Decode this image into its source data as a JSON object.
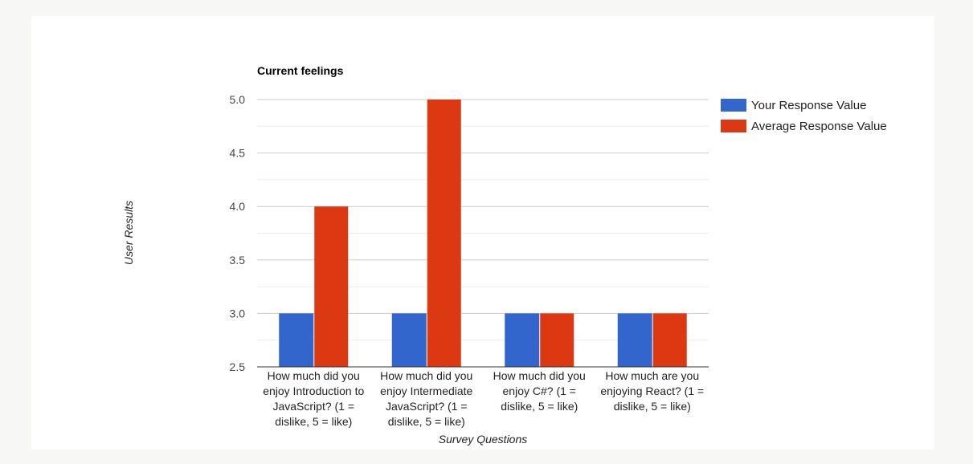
{
  "chart_data": {
    "type": "bar",
    "title": "Current feelings",
    "xlabel": "Survey Questions",
    "ylabel": "User Results",
    "categories": [
      "How much did you enjoy Introduction to JavaScript? (1 = dislike, 5 = like)",
      "How much did you enjoy Intermediate JavaScript? (1 = dislike, 5 = like)",
      "How much did you enjoy C#? (1 = dislike, 5 = like)",
      "How much are you enjoying React? (1 = dislike, 5 = like)"
    ],
    "series": [
      {
        "name": "Your Response Value",
        "color": "#3366cc",
        "values": [
          3,
          3,
          3,
          3
        ]
      },
      {
        "name": "Average Response Value",
        "color": "#dc3912",
        "values": [
          4,
          5,
          3,
          3
        ]
      }
    ],
    "ylim": [
      2.5,
      5.0
    ],
    "yticks": [
      "2.5",
      "3.0",
      "3.5",
      "4.0",
      "4.5",
      "5.0"
    ],
    "grid": true,
    "legend_position": "right"
  }
}
